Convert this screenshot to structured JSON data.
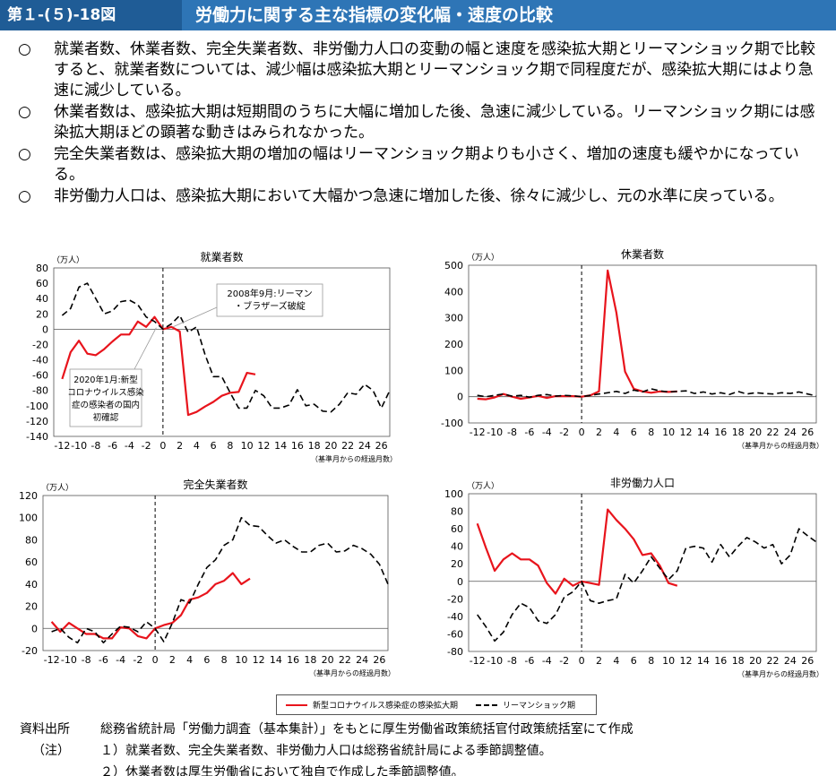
{
  "header": {
    "figure_number": "第１-(５)-18図",
    "title": "労働力に関する主な指標の変化幅・速度の比較"
  },
  "bullets": [
    {
      "mark": "○",
      "text": "就業者数、休業者数、完全失業者数、非労働力人口の変動の幅と速度を感染拡大期とリーマンショック期で比較すると、就業者数については、減少幅は感染拡大期とリーマンショック期で同程度だが、感染拡大期にはより急速に減少している。"
    },
    {
      "mark": "○",
      "text": "休業者数は、感染拡大期は短期間のうちに大幅に増加した後、急速に減少している。リーマンショック期には感染拡大期ほどの顕著な動きはみられなかった。"
    },
    {
      "mark": "○",
      "text": "完全失業者数は、感染拡大期の増加の幅はリーマンショック期よりも小さく、増加の速度も緩やかになっている。"
    },
    {
      "mark": "○",
      "text": "非労働力人口は、感染拡大期において大幅かつ急速に増加した後、徐々に減少し、元の水準に戻っている。"
    }
  ],
  "colors": {
    "covid": "#e8141c",
    "lehman": "#000000",
    "header": "#2e75b6",
    "badge": "#1f5c96"
  },
  "chart_data": [
    {
      "type": "line",
      "title": "就業者数",
      "unit": "（万人）",
      "xlabel": "（基準月からの経過月数）",
      "ylim": [
        -140,
        80
      ],
      "yticks": [
        -140,
        -120,
        -100,
        -80,
        -60,
        -40,
        -20,
        0,
        20,
        40,
        60,
        80
      ],
      "xlim": [
        -13,
        27
      ],
      "xticks": [
        -12,
        -10,
        -8,
        -6,
        -4,
        -2,
        0,
        2,
        4,
        6,
        8,
        10,
        12,
        14,
        16,
        18,
        20,
        22,
        24,
        26
      ],
      "annotations": [
        "2008年9月:リーマン・ブラザーズ破綻",
        "2020年1月:新型コロナウイルス感染症の感染者の国内初確認"
      ],
      "series": [
        {
          "name": "新型コロナウイルス感染症の感染拡大期",
          "x": [
            -12,
            -11,
            -10,
            -9,
            -8,
            -7,
            -6,
            -5,
            -4,
            -3,
            -2,
            -1,
            0,
            1,
            2,
            3,
            4,
            5,
            6,
            7,
            8,
            9,
            10,
            11
          ],
          "y": [
            -65,
            -30,
            -15,
            -32,
            -34,
            -26,
            -16,
            -7,
            -7,
            10,
            3,
            16,
            0,
            3,
            -3,
            -112,
            -108,
            -101,
            -95,
            -87,
            -83,
            -82,
            -57,
            -59
          ]
        },
        {
          "name": "リーマンショック期",
          "x": [
            -12,
            -11,
            -10,
            -9,
            -8,
            -7,
            -6,
            -5,
            -4,
            -3,
            -2,
            -1,
            0,
            1,
            2,
            3,
            4,
            5,
            6,
            7,
            8,
            9,
            10,
            11,
            12,
            13,
            14,
            15,
            16,
            17,
            18,
            19,
            20,
            21,
            22,
            23,
            24,
            25,
            26,
            27
          ],
          "y": [
            18,
            27,
            55,
            60,
            40,
            20,
            24,
            36,
            38,
            32,
            16,
            10,
            0,
            7,
            18,
            -4,
            3,
            -33,
            -62,
            -62,
            -83,
            -103,
            -103,
            -80,
            -87,
            -103,
            -103,
            -99,
            -79,
            -100,
            -98,
            -107,
            -108,
            -98,
            -83,
            -85,
            -72,
            -80,
            -103,
            -80
          ]
        }
      ]
    },
    {
      "type": "line",
      "title": "休業者数",
      "unit": "（万人）",
      "xlabel": "（基準月からの経過月数）",
      "ylim": [
        -100,
        500
      ],
      "yticks": [
        -100,
        0,
        100,
        200,
        300,
        400,
        500
      ],
      "xlim": [
        -13,
        27
      ],
      "xticks": [
        -12,
        -10,
        -8,
        -6,
        -4,
        -2,
        0,
        2,
        4,
        6,
        8,
        10,
        12,
        14,
        16,
        18,
        20,
        22,
        24,
        26
      ],
      "series": [
        {
          "name": "新型コロナウイルス感染症の感染拡大期",
          "x": [
            -12,
            -11,
            -10,
            -9,
            -8,
            -7,
            -6,
            -5,
            -4,
            -3,
            -2,
            -1,
            0,
            1,
            2,
            3,
            4,
            5,
            6,
            7,
            8,
            9,
            10,
            11
          ],
          "y": [
            -8,
            -10,
            -3,
            10,
            0,
            -8,
            -3,
            3,
            -5,
            2,
            2,
            2,
            0,
            5,
            20,
            480,
            320,
            95,
            30,
            20,
            15,
            20,
            18,
            20
          ]
        },
        {
          "name": "リーマンショック期",
          "x": [
            -12,
            -11,
            -10,
            -9,
            -8,
            -7,
            -6,
            -5,
            -4,
            -3,
            -2,
            -1,
            0,
            1,
            2,
            3,
            4,
            5,
            6,
            7,
            8,
            9,
            10,
            11,
            12,
            13,
            14,
            15,
            16,
            17,
            18,
            19,
            20,
            21,
            22,
            23,
            24,
            25,
            26,
            27
          ],
          "y": [
            5,
            0,
            5,
            10,
            2,
            5,
            -2,
            5,
            8,
            2,
            5,
            3,
            0,
            5,
            10,
            15,
            20,
            12,
            25,
            18,
            30,
            22,
            18,
            20,
            22,
            12,
            18,
            10,
            15,
            8,
            20,
            10,
            15,
            12,
            10,
            15,
            12,
            18,
            10,
            3
          ]
        }
      ]
    },
    {
      "type": "line",
      "title": "完全失業者数",
      "unit": "（万人）",
      "xlabel": "（基準月からの経過月数）",
      "ylim": [
        -20,
        120
      ],
      "yticks": [
        -20,
        0,
        20,
        40,
        60,
        80,
        100,
        120
      ],
      "xlim": [
        -13,
        27
      ],
      "xticks": [
        -12,
        -10,
        -8,
        -6,
        -4,
        -2,
        0,
        2,
        4,
        6,
        8,
        10,
        12,
        14,
        16,
        18,
        20,
        22,
        24,
        26
      ],
      "series": [
        {
          "name": "新型コロナウイルス感染症の感染拡大期",
          "x": [
            -12,
            -11,
            -10,
            -9,
            -8,
            -7,
            -6,
            -5,
            -4,
            -3,
            -2,
            -1,
            0,
            1,
            2,
            3,
            4,
            5,
            6,
            7,
            8,
            9,
            10,
            11
          ],
          "y": [
            6,
            -3,
            5,
            0,
            -5,
            -5,
            -9,
            -9,
            1,
            0,
            -7,
            -9,
            0,
            3,
            5,
            12,
            26,
            28,
            32,
            40,
            43,
            50,
            40,
            45
          ]
        },
        {
          "name": "リーマンショック期",
          "x": [
            -12,
            -11,
            -10,
            -9,
            -8,
            -7,
            -6,
            -5,
            -4,
            -3,
            -2,
            -1,
            0,
            1,
            2,
            3,
            4,
            5,
            6,
            7,
            8,
            9,
            10,
            11,
            12,
            13,
            14,
            15,
            16,
            17,
            18,
            19,
            20,
            21,
            22,
            23,
            24,
            25,
            26,
            27
          ],
          "y": [
            -3,
            0,
            -8,
            -13,
            0,
            -3,
            -13,
            -5,
            2,
            1,
            -3,
            6,
            0,
            -12,
            5,
            26,
            23,
            40,
            55,
            62,
            75,
            80,
            100,
            93,
            92,
            84,
            77,
            80,
            74,
            69,
            69,
            75,
            77,
            69,
            70,
            75,
            72,
            67,
            58,
            40
          ]
        }
      ]
    },
    {
      "type": "line",
      "title": "非労働力人口",
      "unit": "（万人）",
      "xlabel": "（基準月からの経過月数）",
      "ylim": [
        -80,
        100
      ],
      "yticks": [
        -80,
        -60,
        -40,
        -20,
        0,
        20,
        40,
        60,
        80,
        100
      ],
      "xlim": [
        -13,
        27
      ],
      "xticks": [
        -12,
        -10,
        -8,
        -6,
        -4,
        -2,
        0,
        2,
        4,
        6,
        8,
        10,
        12,
        14,
        16,
        18,
        20,
        22,
        24,
        26
      ],
      "series": [
        {
          "name": "新型コロナウイルス感染症の感染拡大期",
          "x": [
            -12,
            -11,
            -10,
            -9,
            -8,
            -7,
            -6,
            -5,
            -4,
            -3,
            -2,
            -1,
            0,
            1,
            2,
            3,
            4,
            5,
            6,
            7,
            8,
            9,
            10,
            11
          ],
          "y": [
            66,
            38,
            12,
            25,
            32,
            25,
            25,
            18,
            -2,
            -14,
            3,
            -5,
            0,
            -2,
            -4,
            82,
            70,
            60,
            48,
            30,
            32,
            18,
            -2,
            -5
          ]
        },
        {
          "name": "リーマンショック期",
          "x": [
            -12,
            -11,
            -10,
            -9,
            -8,
            -7,
            -6,
            -5,
            -4,
            -3,
            -2,
            -1,
            0,
            1,
            2,
            3,
            4,
            5,
            6,
            7,
            8,
            9,
            10,
            11,
            12,
            13,
            14,
            15,
            16,
            17,
            18,
            19,
            20,
            21,
            22,
            23,
            24,
            25,
            26,
            27
          ],
          "y": [
            -38,
            -52,
            -68,
            -58,
            -38,
            -25,
            -30,
            -45,
            -48,
            -38,
            -18,
            -12,
            0,
            -22,
            -25,
            -22,
            -20,
            8,
            -2,
            12,
            28,
            15,
            2,
            12,
            38,
            40,
            38,
            22,
            42,
            28,
            40,
            50,
            45,
            38,
            42,
            20,
            30,
            60,
            52,
            45
          ]
        }
      ]
    }
  ],
  "legend": {
    "covid": "新型コロナウイルス感染症の感染拡大期",
    "lehman": "リーマンショック期"
  },
  "notes": [
    {
      "label": "資料出所",
      "text": "総務省統計局「労働力調査（基本集計）」をもとに厚生労働省政策統括官付政策統括室にて作成"
    },
    {
      "label": "（注）",
      "text": "１）就業者数、完全失業者数、非労働力人口は総務省統計局による季節調整値。"
    },
    {
      "label": "",
      "text": "２）休業者数は厚生労働省において独自で作成した季節調整値。"
    }
  ]
}
